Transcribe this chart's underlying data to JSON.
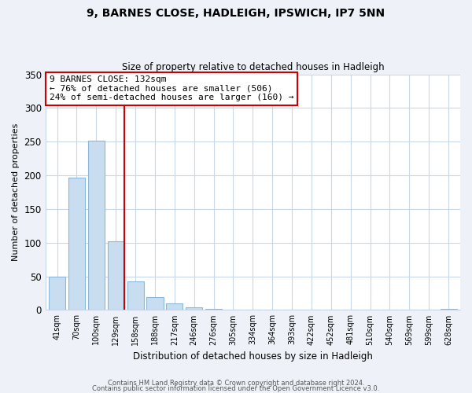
{
  "title": "9, BARNES CLOSE, HADLEIGH, IPSWICH, IP7 5NN",
  "subtitle": "Size of property relative to detached houses in Hadleigh",
  "xlabel": "Distribution of detached houses by size in Hadleigh",
  "ylabel": "Number of detached properties",
  "bin_labels": [
    "41sqm",
    "70sqm",
    "100sqm",
    "129sqm",
    "158sqm",
    "188sqm",
    "217sqm",
    "246sqm",
    "276sqm",
    "305sqm",
    "334sqm",
    "364sqm",
    "393sqm",
    "422sqm",
    "452sqm",
    "481sqm",
    "510sqm",
    "540sqm",
    "569sqm",
    "599sqm",
    "628sqm"
  ],
  "bar_heights": [
    50,
    197,
    252,
    102,
    43,
    19,
    10,
    4,
    2,
    0,
    0,
    0,
    0,
    1,
    0,
    0,
    0,
    0,
    0,
    0,
    2
  ],
  "bar_color": "#c8ddef",
  "bar_edge_color": "#8ab8d8",
  "ylim": [
    0,
    350
  ],
  "yticks": [
    0,
    50,
    100,
    150,
    200,
    250,
    300,
    350
  ],
  "annotation_title": "9 BARNES CLOSE: 132sqm",
  "annotation_line1": "← 76% of detached houses are smaller (506)",
  "annotation_line2": "24% of semi-detached houses are larger (160) →",
  "property_bar_index": 3,
  "property_line_color": "#cc0000",
  "footer_line1": "Contains HM Land Registry data © Crown copyright and database right 2024.",
  "footer_line2": "Contains public sector information licensed under the Open Government Licence v3.0.",
  "bg_color": "#eef2f8",
  "plot_bg_color": "#ffffff",
  "grid_color": "#c8d8e8"
}
